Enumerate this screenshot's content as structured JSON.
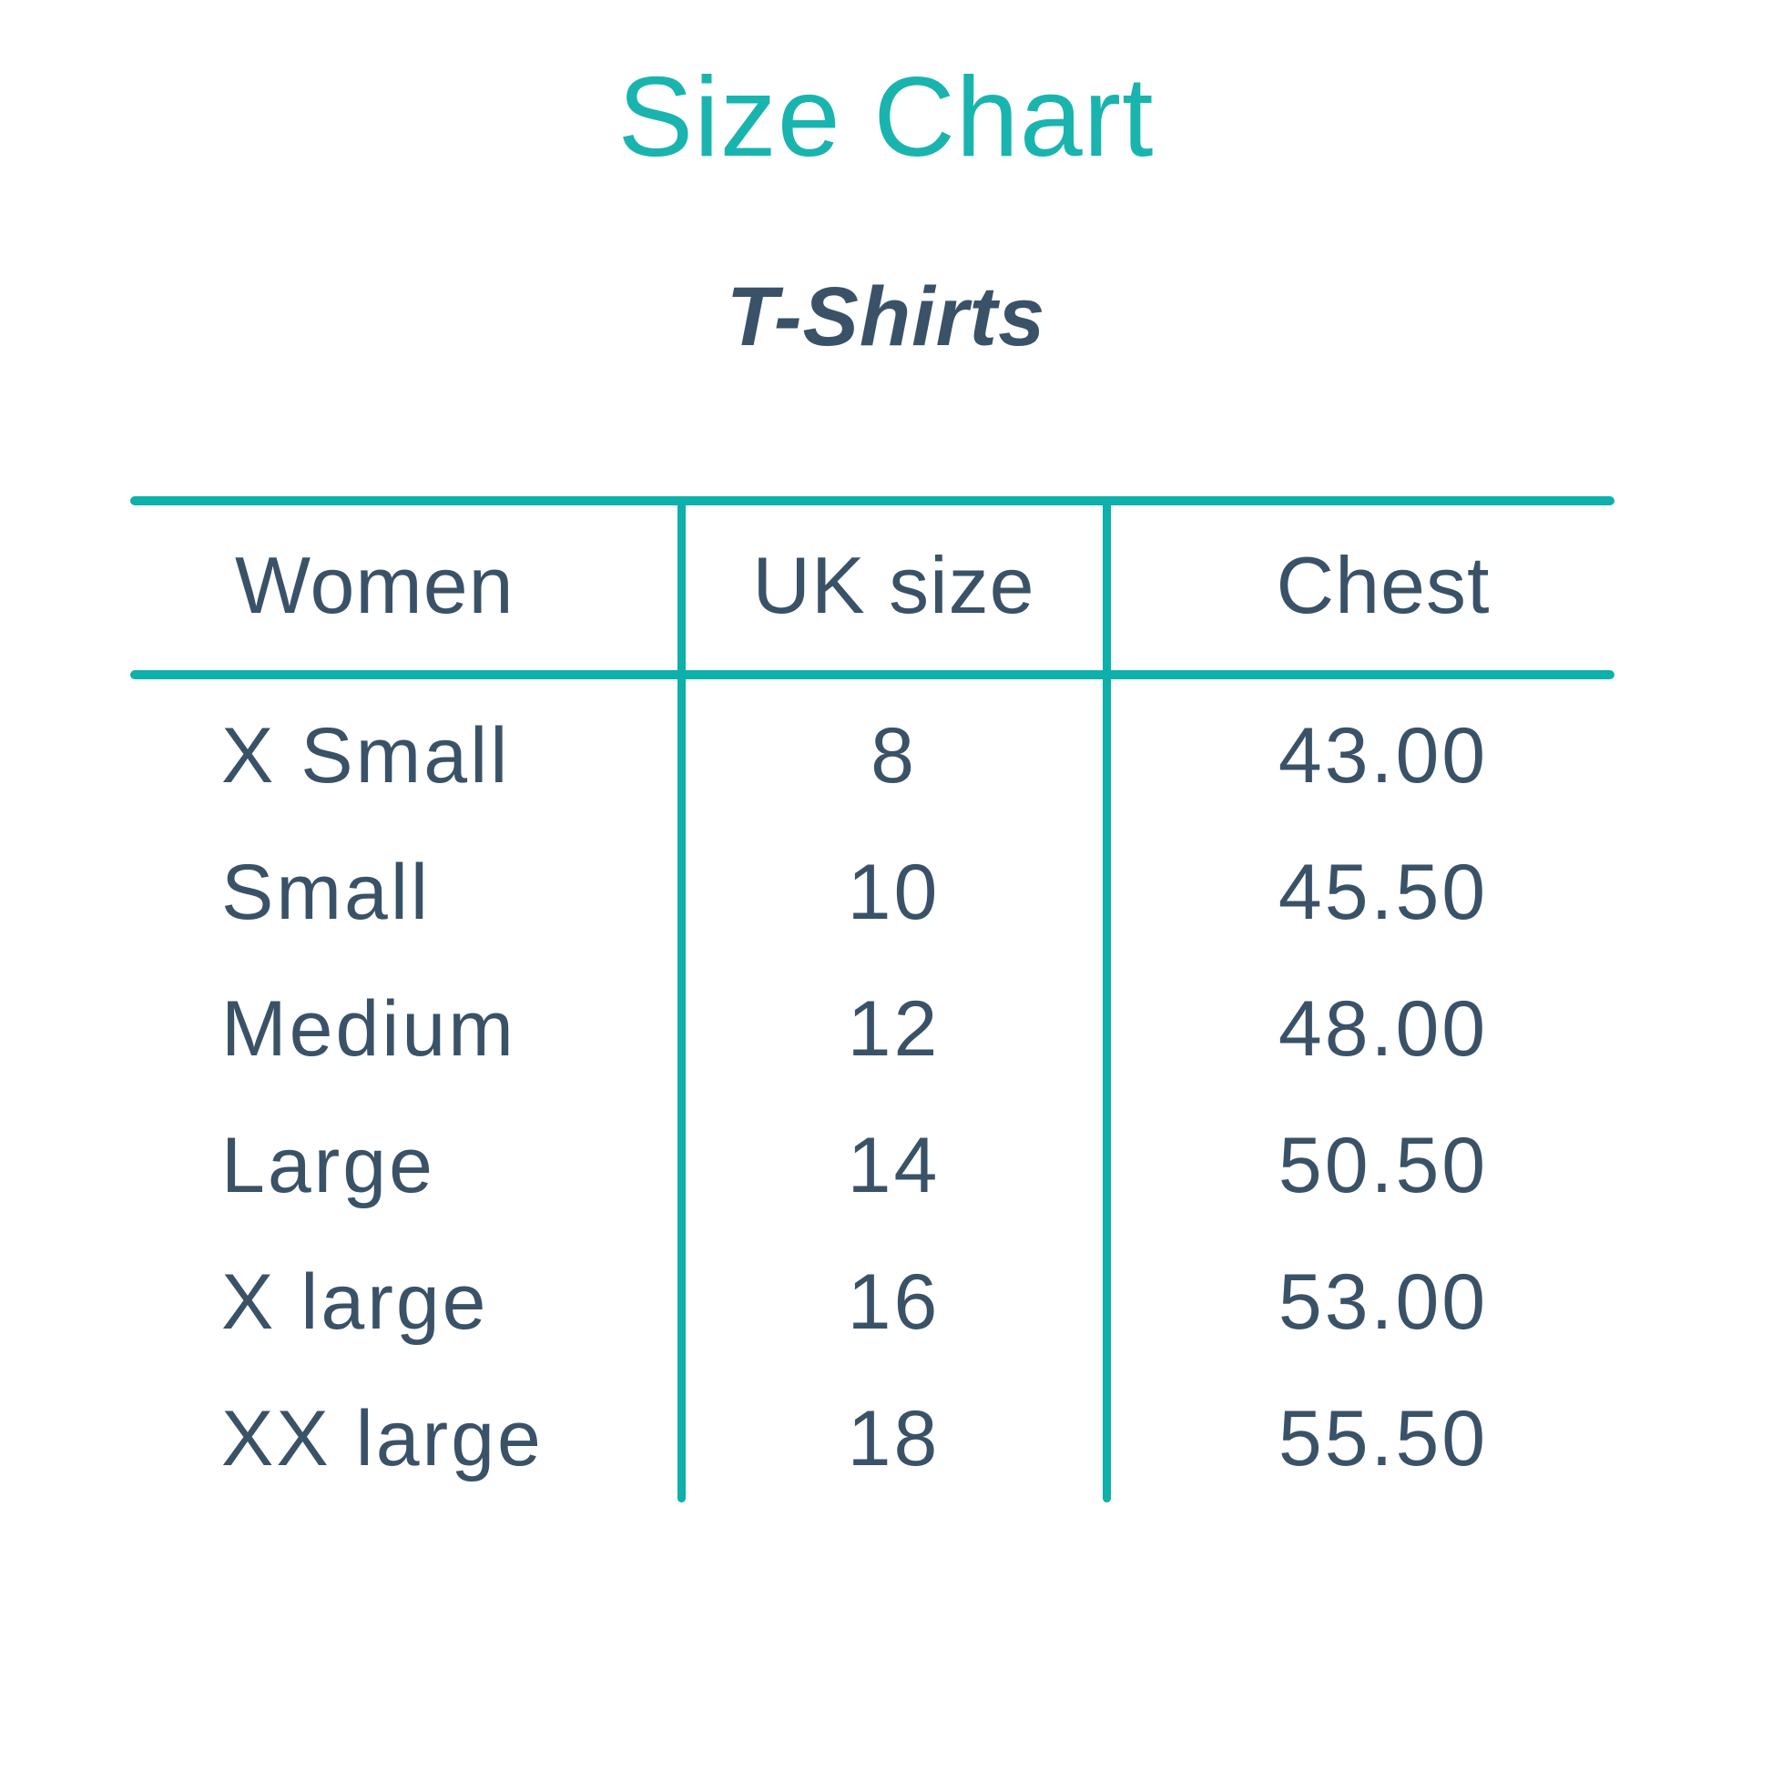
{
  "page": {
    "background": "#ffffff"
  },
  "title": {
    "text": "Size Chart",
    "color": "#1ab4af"
  },
  "subtitle": {
    "text": "T-Shirts",
    "color": "#3a5268"
  },
  "table": {
    "line_color": "#0db0ab",
    "text_color": "#3a5268",
    "headers": [
      "Women",
      "UK size",
      "Chest"
    ],
    "rows": [
      {
        "size": "X Small",
        "uk": "8",
        "chest": "43.00"
      },
      {
        "size": "Small",
        "uk": "10",
        "chest": "45.50"
      },
      {
        "size": "Medium",
        "uk": "12",
        "chest": "48.00"
      },
      {
        "size": "Large",
        "uk": "14",
        "chest": "50.50"
      },
      {
        "size": "X large",
        "uk": "16",
        "chest": "53.00"
      },
      {
        "size": "XX large",
        "uk": "18",
        "chest": "55.50"
      }
    ]
  },
  "chart_data": {
    "type": "table",
    "title": "Size Chart",
    "subtitle": "T-Shirts",
    "columns": [
      "Women",
      "UK size",
      "Chest"
    ],
    "rows": [
      [
        "X Small",
        "8",
        "43.00"
      ],
      [
        "Small",
        "10",
        "45.50"
      ],
      [
        "Medium",
        "12",
        "48.00"
      ],
      [
        "Large",
        "14",
        "50.50"
      ],
      [
        "X large",
        "16",
        "53.00"
      ],
      [
        "XX large",
        "18",
        "55.50"
      ]
    ]
  }
}
